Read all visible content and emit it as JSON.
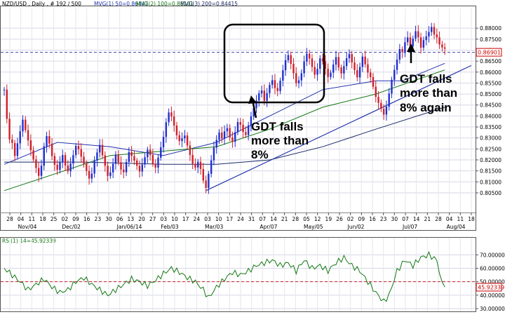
{
  "chart_data": [
    {
      "type": "candlestick",
      "title": "NZD/USD , Daily , # 192 / 500",
      "legend": [
        {
          "label": "MVG(1) 50=0.86447",
          "color": "#2233aa"
        },
        {
          "label": "MVG(2) 100=0.86101",
          "color": "#117711"
        },
        {
          "label": "MVG(3) 200=0.84415",
          "color": "#1a2a66"
        }
      ],
      "ylim": [
        0.797,
        0.889
      ],
      "y_ticks": [
        "0.88000",
        "0.87500",
        "0.87000",
        "0.86500",
        "0.86000",
        "0.85500",
        "0.85000",
        "0.84500",
        "0.84000",
        "0.83500",
        "0.83000",
        "0.82500",
        "0.82000",
        "0.81500",
        "0.81000",
        "0.80500"
      ],
      "y_tick_values": [
        0.88,
        0.875,
        0.87,
        0.865,
        0.86,
        0.855,
        0.85,
        0.845,
        0.84,
        0.835,
        0.83,
        0.825,
        0.82,
        0.815,
        0.81,
        0.805
      ],
      "current_price": "0.86901",
      "current_value": 0.86901,
      "x_day_labels": [
        "28",
        "04",
        "11",
        "18",
        "25",
        "02",
        "09",
        "16",
        "23",
        "30",
        "06",
        "13",
        "20",
        "27",
        "03",
        "10",
        "17",
        "24",
        "03",
        "10",
        "17",
        "24",
        "31",
        "07",
        "14",
        "21",
        "28",
        "05",
        "12",
        "19",
        "26",
        "02",
        "09",
        "16",
        "23",
        "30",
        "07",
        "14",
        "21",
        "28",
        "04",
        "11",
        "18"
      ],
      "x_month_labels": [
        {
          "label": "Nov/04",
          "week": 1
        },
        {
          "label": "Dec/02",
          "week": 5
        },
        {
          "label": "Jan/06/14",
          "week": 10
        },
        {
          "label": "Feb/03",
          "week": 14
        },
        {
          "label": "Mar/03",
          "week": 18
        },
        {
          "label": "Apr/07",
          "week": 23
        },
        {
          "label": "May/05",
          "week": 27
        },
        {
          "label": "Jun/02",
          "week": 31
        },
        {
          "label": "Jul/07",
          "week": 36
        },
        {
          "label": "Aug/04",
          "week": 40
        }
      ],
      "close_path": [
        [
          0,
          0.852
        ],
        [
          1,
          0.838
        ],
        [
          2,
          0.828
        ],
        [
          3,
          0.826
        ],
        [
          4,
          0.82
        ],
        [
          5,
          0.826
        ],
        [
          6,
          0.832
        ],
        [
          7,
          0.838
        ],
        [
          8,
          0.834
        ],
        [
          9,
          0.83
        ],
        [
          10,
          0.826
        ],
        [
          11,
          0.822
        ],
        [
          12,
          0.818
        ],
        [
          13,
          0.814
        ],
        [
          14,
          0.818
        ],
        [
          15,
          0.826
        ],
        [
          16,
          0.83
        ],
        [
          17,
          0.826
        ],
        [
          18,
          0.82
        ],
        [
          19,
          0.816
        ],
        [
          20,
          0.814
        ],
        [
          21,
          0.818
        ],
        [
          22,
          0.822
        ],
        [
          23,
          0.818
        ],
        [
          24,
          0.816
        ],
        [
          25,
          0.82
        ],
        [
          26,
          0.824
        ],
        [
          27,
          0.828
        ],
        [
          28,
          0.826
        ],
        [
          29,
          0.822
        ],
        [
          30,
          0.818
        ],
        [
          31,
          0.814
        ],
        [
          32,
          0.81
        ],
        [
          33,
          0.812
        ],
        [
          34,
          0.818
        ],
        [
          35,
          0.822
        ],
        [
          36,
          0.826
        ],
        [
          37,
          0.822
        ],
        [
          38,
          0.818
        ],
        [
          39,
          0.814
        ],
        [
          40,
          0.816
        ],
        [
          41,
          0.82
        ],
        [
          42,
          0.824
        ],
        [
          43,
          0.82
        ],
        [
          44,
          0.816
        ],
        [
          45,
          0.814
        ],
        [
          46,
          0.818
        ],
        [
          47,
          0.822
        ],
        [
          48,
          0.82
        ],
        [
          49,
          0.818
        ],
        [
          50,
          0.816
        ],
        [
          51,
          0.814
        ],
        [
          52,
          0.818
        ],
        [
          53,
          0.822
        ],
        [
          54,
          0.826
        ],
        [
          55,
          0.824
        ],
        [
          56,
          0.82
        ],
        [
          57,
          0.818
        ],
        [
          58,
          0.822
        ],
        [
          59,
          0.826
        ],
        [
          60,
          0.83
        ],
        [
          61,
          0.836
        ],
        [
          62,
          0.84
        ],
        [
          63,
          0.838
        ],
        [
          64,
          0.834
        ],
        [
          65,
          0.83
        ],
        [
          66,
          0.828
        ],
        [
          67,
          0.83
        ],
        [
          68,
          0.832
        ],
        [
          69,
          0.828
        ],
        [
          70,
          0.824
        ],
        [
          71,
          0.82
        ],
        [
          72,
          0.818
        ],
        [
          73,
          0.82
        ],
        [
          74,
          0.816
        ],
        [
          75,
          0.81
        ],
        [
          76,
          0.806
        ],
        [
          77,
          0.812
        ],
        [
          78,
          0.818
        ],
        [
          79,
          0.824
        ],
        [
          80,
          0.828
        ],
        [
          81,
          0.832
        ],
        [
          82,
          0.83
        ],
        [
          83,
          0.834
        ],
        [
          84,
          0.836
        ],
        [
          85,
          0.832
        ],
        [
          86,
          0.83
        ],
        [
          87,
          0.834
        ],
        [
          88,
          0.838
        ],
        [
          89,
          0.836
        ],
        [
          90,
          0.832
        ],
        [
          91,
          0.83
        ],
        [
          92,
          0.834
        ],
        [
          93,
          0.838
        ],
        [
          94,
          0.842
        ],
        [
          95,
          0.846
        ],
        [
          96,
          0.85
        ],
        [
          97,
          0.852
        ],
        [
          98,
          0.848
        ],
        [
          99,
          0.852
        ],
        [
          100,
          0.856
        ],
        [
          101,
          0.858
        ],
        [
          102,
          0.854
        ],
        [
          103,
          0.852
        ],
        [
          104,
          0.856
        ],
        [
          105,
          0.86
        ],
        [
          106,
          0.864
        ],
        [
          107,
          0.866
        ],
        [
          108,
          0.862
        ],
        [
          109,
          0.858
        ],
        [
          110,
          0.854
        ],
        [
          111,
          0.856
        ],
        [
          112,
          0.86
        ],
        [
          113,
          0.866
        ],
        [
          114,
          0.87
        ],
        [
          115,
          0.868
        ],
        [
          116,
          0.864
        ],
        [
          117,
          0.86
        ],
        [
          118,
          0.862
        ],
        [
          119,
          0.866
        ],
        [
          120,
          0.864
        ],
        [
          121,
          0.86
        ],
        [
          122,
          0.856
        ],
        [
          123,
          0.858
        ],
        [
          124,
          0.862
        ],
        [
          125,
          0.866
        ],
        [
          126,
          0.862
        ],
        [
          127,
          0.86
        ],
        [
          128,
          0.864
        ],
        [
          129,
          0.868
        ],
        [
          130,
          0.87
        ],
        [
          131,
          0.866
        ],
        [
          132,
          0.862
        ],
        [
          133,
          0.858
        ],
        [
          134,
          0.862
        ],
        [
          135,
          0.866
        ],
        [
          136,
          0.862
        ],
        [
          137,
          0.858
        ],
        [
          138,
          0.856
        ],
        [
          139,
          0.852
        ],
        [
          140,
          0.848
        ],
        [
          141,
          0.846
        ],
        [
          142,
          0.844
        ],
        [
          143,
          0.842
        ],
        [
          144,
          0.846
        ],
        [
          145,
          0.852
        ],
        [
          146,
          0.858
        ],
        [
          147,
          0.862
        ],
        [
          148,
          0.866
        ],
        [
          149,
          0.87
        ],
        [
          150,
          0.868
        ],
        [
          151,
          0.872
        ],
        [
          152,
          0.874
        ],
        [
          153,
          0.87
        ],
        [
          154,
          0.874
        ],
        [
          155,
          0.878
        ],
        [
          156,
          0.876
        ],
        [
          157,
          0.872
        ],
        [
          158,
          0.876
        ],
        [
          159,
          0.878
        ],
        [
          160,
          0.88
        ],
        [
          161,
          0.882
        ],
        [
          162,
          0.878
        ],
        [
          163,
          0.876
        ],
        [
          164,
          0.872
        ],
        [
          165,
          0.87
        ],
        [
          166,
          0.869
        ]
      ],
      "moving_averages": [
        {
          "name": "MVG(1) 50",
          "color": "#2233aa",
          "points": [
            [
              0,
              0.818
            ],
            [
              20,
              0.828
            ],
            [
              40,
              0.826
            ],
            [
              60,
              0.822
            ],
            [
              80,
              0.828
            ],
            [
              100,
              0.84
            ],
            [
              120,
              0.852
            ],
            [
              140,
              0.856
            ],
            [
              150,
              0.856
            ],
            [
              166,
              0.864
            ]
          ]
        },
        {
          "name": "MVG(2) 100",
          "color": "#117711",
          "points": [
            [
              0,
              0.806
            ],
            [
              20,
              0.814
            ],
            [
              40,
              0.822
            ],
            [
              60,
              0.824
            ],
            [
              80,
              0.826
            ],
            [
              100,
              0.834
            ],
            [
              120,
              0.844
            ],
            [
              140,
              0.85
            ],
            [
              166,
              0.861
            ]
          ]
        },
        {
          "name": "MVG(3) 200",
          "color": "#1a2a66",
          "points": [
            [
              0,
              0.819
            ],
            [
              30,
              0.819
            ],
            [
              60,
              0.818
            ],
            [
              80,
              0.818
            ],
            [
              100,
              0.82
            ],
            [
              120,
              0.826
            ],
            [
              140,
              0.834
            ],
            [
              166,
              0.844
            ]
          ]
        }
      ],
      "trendline": [
        [
          76,
          0.806
        ],
        [
          176,
          0.863
        ]
      ],
      "annotations": [
        {
          "text": [
            "GDT falls",
            "more than",
            "8%"
          ]
        },
        {
          "text": [
            "GDT falls",
            "more than",
            "8% again"
          ]
        }
      ]
    },
    {
      "type": "line",
      "title": "RSI(1) 14=45.92339",
      "ylim": [
        30,
        78
      ],
      "y_ticks": [
        "70.00000",
        "60.00000",
        "50.00000",
        "40.00000",
        "30.00000"
      ],
      "y_tick_values": [
        70,
        60,
        50,
        40,
        30
      ],
      "reference_level": 50,
      "current_value_label": "45.92339",
      "current_value": 45.92339,
      "series_color": "#117711",
      "points": [
        [
          0,
          60
        ],
        [
          3,
          55
        ],
        [
          6,
          50
        ],
        [
          9,
          44
        ],
        [
          12,
          48
        ],
        [
          15,
          52
        ],
        [
          18,
          46
        ],
        [
          21,
          42
        ],
        [
          24,
          44
        ],
        [
          27,
          50
        ],
        [
          30,
          53
        ],
        [
          33,
          48
        ],
        [
          36,
          44
        ],
        [
          39,
          40
        ],
        [
          42,
          44
        ],
        [
          45,
          48
        ],
        [
          48,
          52
        ],
        [
          51,
          50
        ],
        [
          54,
          47
        ],
        [
          57,
          51
        ],
        [
          60,
          56
        ],
        [
          63,
          60
        ],
        [
          66,
          57
        ],
        [
          69,
          53
        ],
        [
          72,
          50
        ],
        [
          75,
          44
        ],
        [
          77,
          38
        ],
        [
          80,
          46
        ],
        [
          83,
          52
        ],
        [
          86,
          57
        ],
        [
          89,
          55
        ],
        [
          92,
          58
        ],
        [
          95,
          62
        ],
        [
          98,
          64
        ],
        [
          101,
          66
        ],
        [
          104,
          62
        ],
        [
          107,
          64
        ],
        [
          110,
          58
        ],
        [
          113,
          66
        ],
        [
          116,
          60
        ],
        [
          119,
          62
        ],
        [
          122,
          58
        ],
        [
          125,
          64
        ],
        [
          128,
          68
        ],
        [
          131,
          62
        ],
        [
          134,
          58
        ],
        [
          137,
          50
        ],
        [
          140,
          42
        ],
        [
          143,
          35
        ],
        [
          145,
          40
        ],
        [
          148,
          58
        ],
        [
          151,
          66
        ],
        [
          154,
          62
        ],
        [
          157,
          68
        ],
        [
          160,
          70
        ],
        [
          163,
          66
        ],
        [
          165,
          48
        ],
        [
          166,
          46
        ]
      ]
    }
  ]
}
